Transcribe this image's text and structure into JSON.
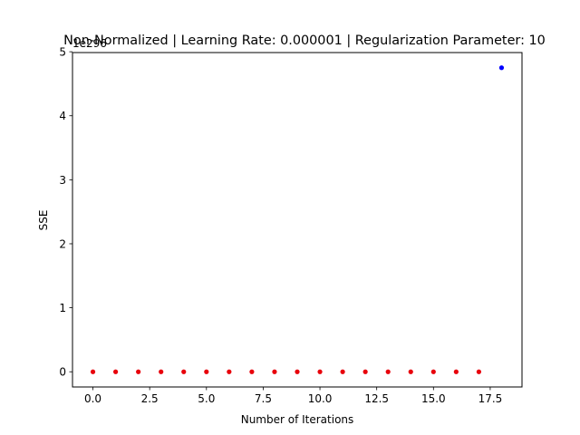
{
  "chart_data": {
    "type": "scatter",
    "title": "Non-Normalized | Learning Rate: 0.000001 | Regularization Parameter: 10",
    "xlabel": "Number of Iterations",
    "ylabel": "SSE",
    "offset_text": "1e296",
    "xlim": [
      -0.9,
      18.9
    ],
    "ylim": [
      -0.2375,
      4.9875
    ],
    "xticks": [
      0.0,
      2.5,
      5.0,
      7.5,
      10.0,
      12.5,
      15.0,
      17.5
    ],
    "xtick_labels": [
      "0.0",
      "2.5",
      "5.0",
      "7.5",
      "10.0",
      "12.5",
      "15.0",
      "17.5"
    ],
    "yticks": [
      0,
      1,
      2,
      3,
      4,
      5
    ],
    "ytick_labels": [
      "0",
      "1",
      "2",
      "3",
      "4",
      "5"
    ],
    "grid": false,
    "series": [
      {
        "color": "#e8000b",
        "x": [
          0,
          1,
          2,
          3,
          4,
          5,
          6,
          7,
          8,
          9,
          10,
          11,
          12,
          13,
          14,
          15,
          16,
          17
        ],
        "y": [
          0,
          0,
          0,
          0,
          0,
          0,
          0,
          0,
          0,
          0,
          0,
          0,
          0,
          0,
          0,
          0,
          0,
          0
        ]
      },
      {
        "color": "#0000ff",
        "x": [
          18
        ],
        "y": [
          4.75
        ]
      }
    ]
  }
}
